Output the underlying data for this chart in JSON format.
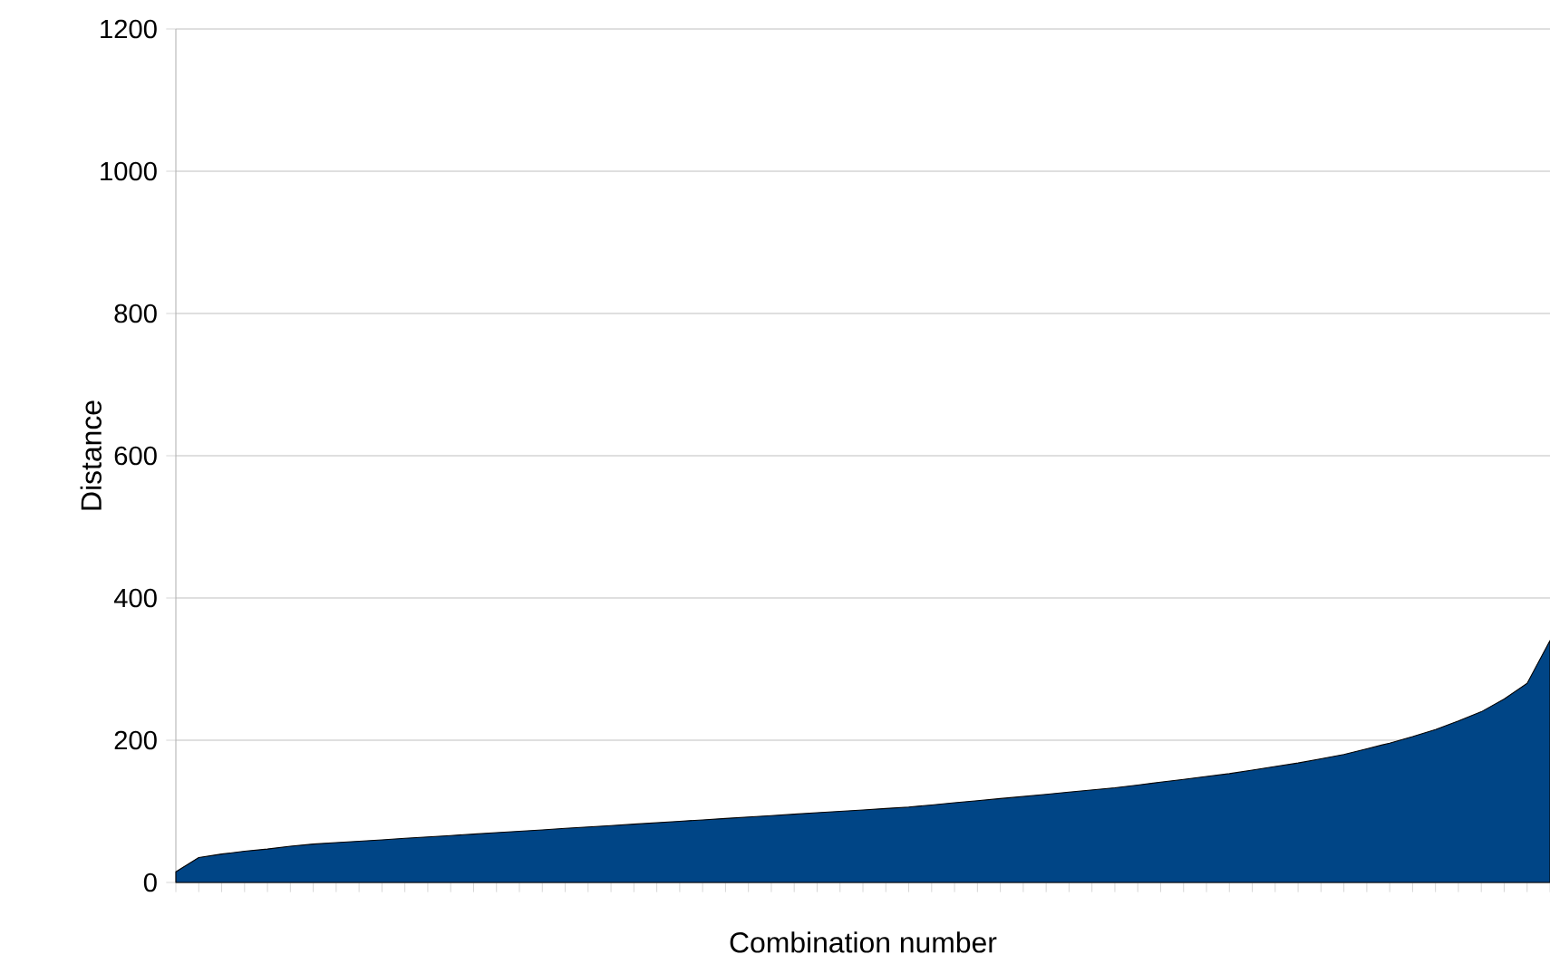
{
  "chart_data": {
    "type": "area",
    "xlabel": "Combination number",
    "ylabel": "Distance",
    "categories": [
      null,
      null,
      null,
      null,
      null,
      null,
      null,
      null,
      null,
      null,
      null,
      null,
      null,
      null,
      null,
      null,
      null,
      null,
      null,
      null,
      null,
      null,
      null,
      null,
      null,
      null,
      null,
      null,
      null,
      null,
      null,
      null,
      null,
      null,
      null,
      null,
      null,
      null,
      null,
      null,
      null,
      null,
      null,
      null,
      null,
      null,
      null,
      null,
      null,
      null,
      null,
      null,
      null,
      null,
      null,
      null,
      null,
      null,
      null,
      null,
      null
    ],
    "series": [
      {
        "color": "#004586",
        "values": [
          15,
          35,
          40,
          44,
          47,
          51,
          54,
          56,
          58,
          60,
          62,
          64,
          66,
          68,
          70,
          72,
          74,
          76,
          78,
          80,
          82,
          84,
          86,
          88,
          90,
          92,
          94,
          96,
          98,
          100,
          102,
          104,
          106,
          109,
          112,
          115,
          118,
          121,
          124,
          127,
          130,
          133,
          137,
          141,
          145,
          149,
          153,
          158,
          163,
          168,
          174,
          180,
          188,
          196,
          205,
          215,
          227,
          240,
          258,
          280,
          340
        ]
      }
    ],
    "ylim": [
      0,
      1200
    ],
    "yticks": [
      0,
      200,
      400,
      600,
      800,
      1000,
      1200
    ],
    "grid": "y"
  }
}
